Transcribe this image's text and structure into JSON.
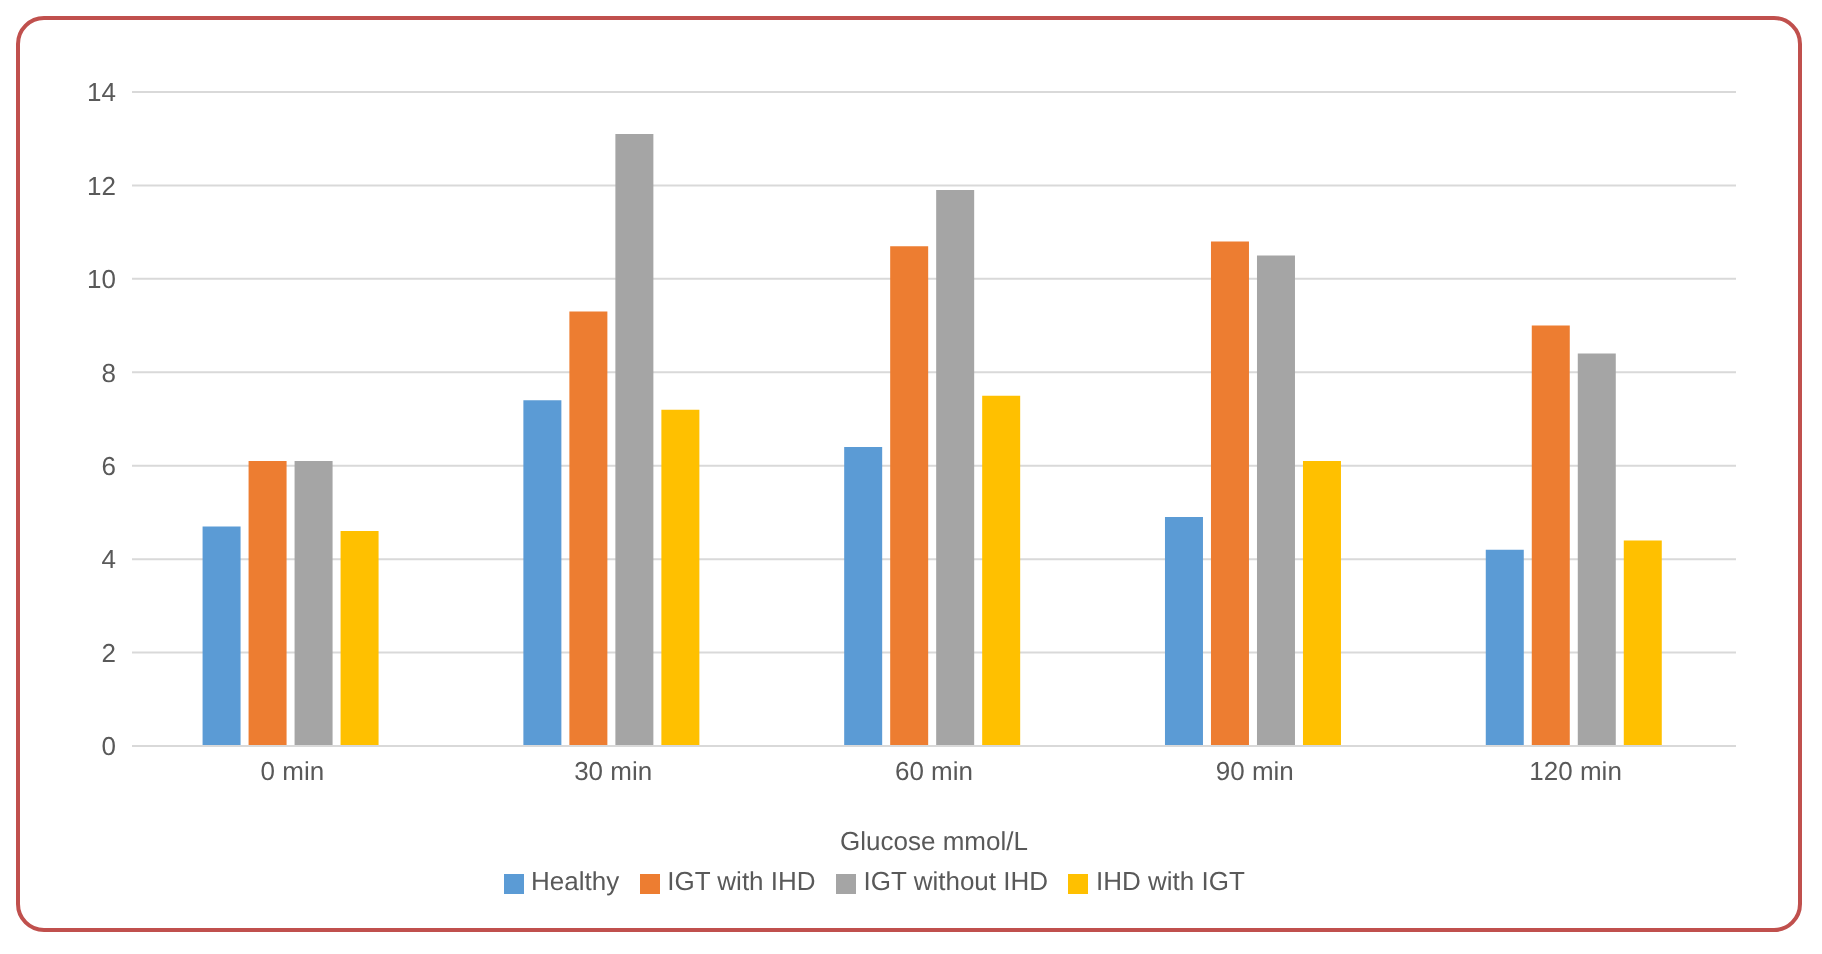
{
  "chart_data": {
    "type": "bar",
    "xlabel": "Glucose mmol/L",
    "categories": [
      "0 min",
      "30 min",
      "60 min",
      "90 min",
      "120 min"
    ],
    "series": [
      {
        "name": "Healthy",
        "color": "#5b9bd5",
        "values": [
          4.7,
          7.4,
          6.4,
          4.9,
          4.2
        ]
      },
      {
        "name": "IGT with IHD",
        "color": "#ed7d31",
        "values": [
          6.1,
          9.3,
          10.7,
          10.8,
          9.0
        ]
      },
      {
        "name": "IGT without IHD",
        "color": "#a5a5a5",
        "values": [
          6.1,
          13.1,
          11.9,
          10.5,
          8.4
        ]
      },
      {
        "name": "IHD with IGT",
        "color": "#ffc000",
        "values": [
          4.6,
          7.2,
          7.5,
          6.1,
          4.4
        ]
      }
    ],
    "ylim": [
      0,
      14
    ],
    "yticks": [
      0,
      2,
      4,
      6,
      8,
      10,
      12,
      14
    ],
    "grid": "y",
    "legend": "bottom"
  }
}
